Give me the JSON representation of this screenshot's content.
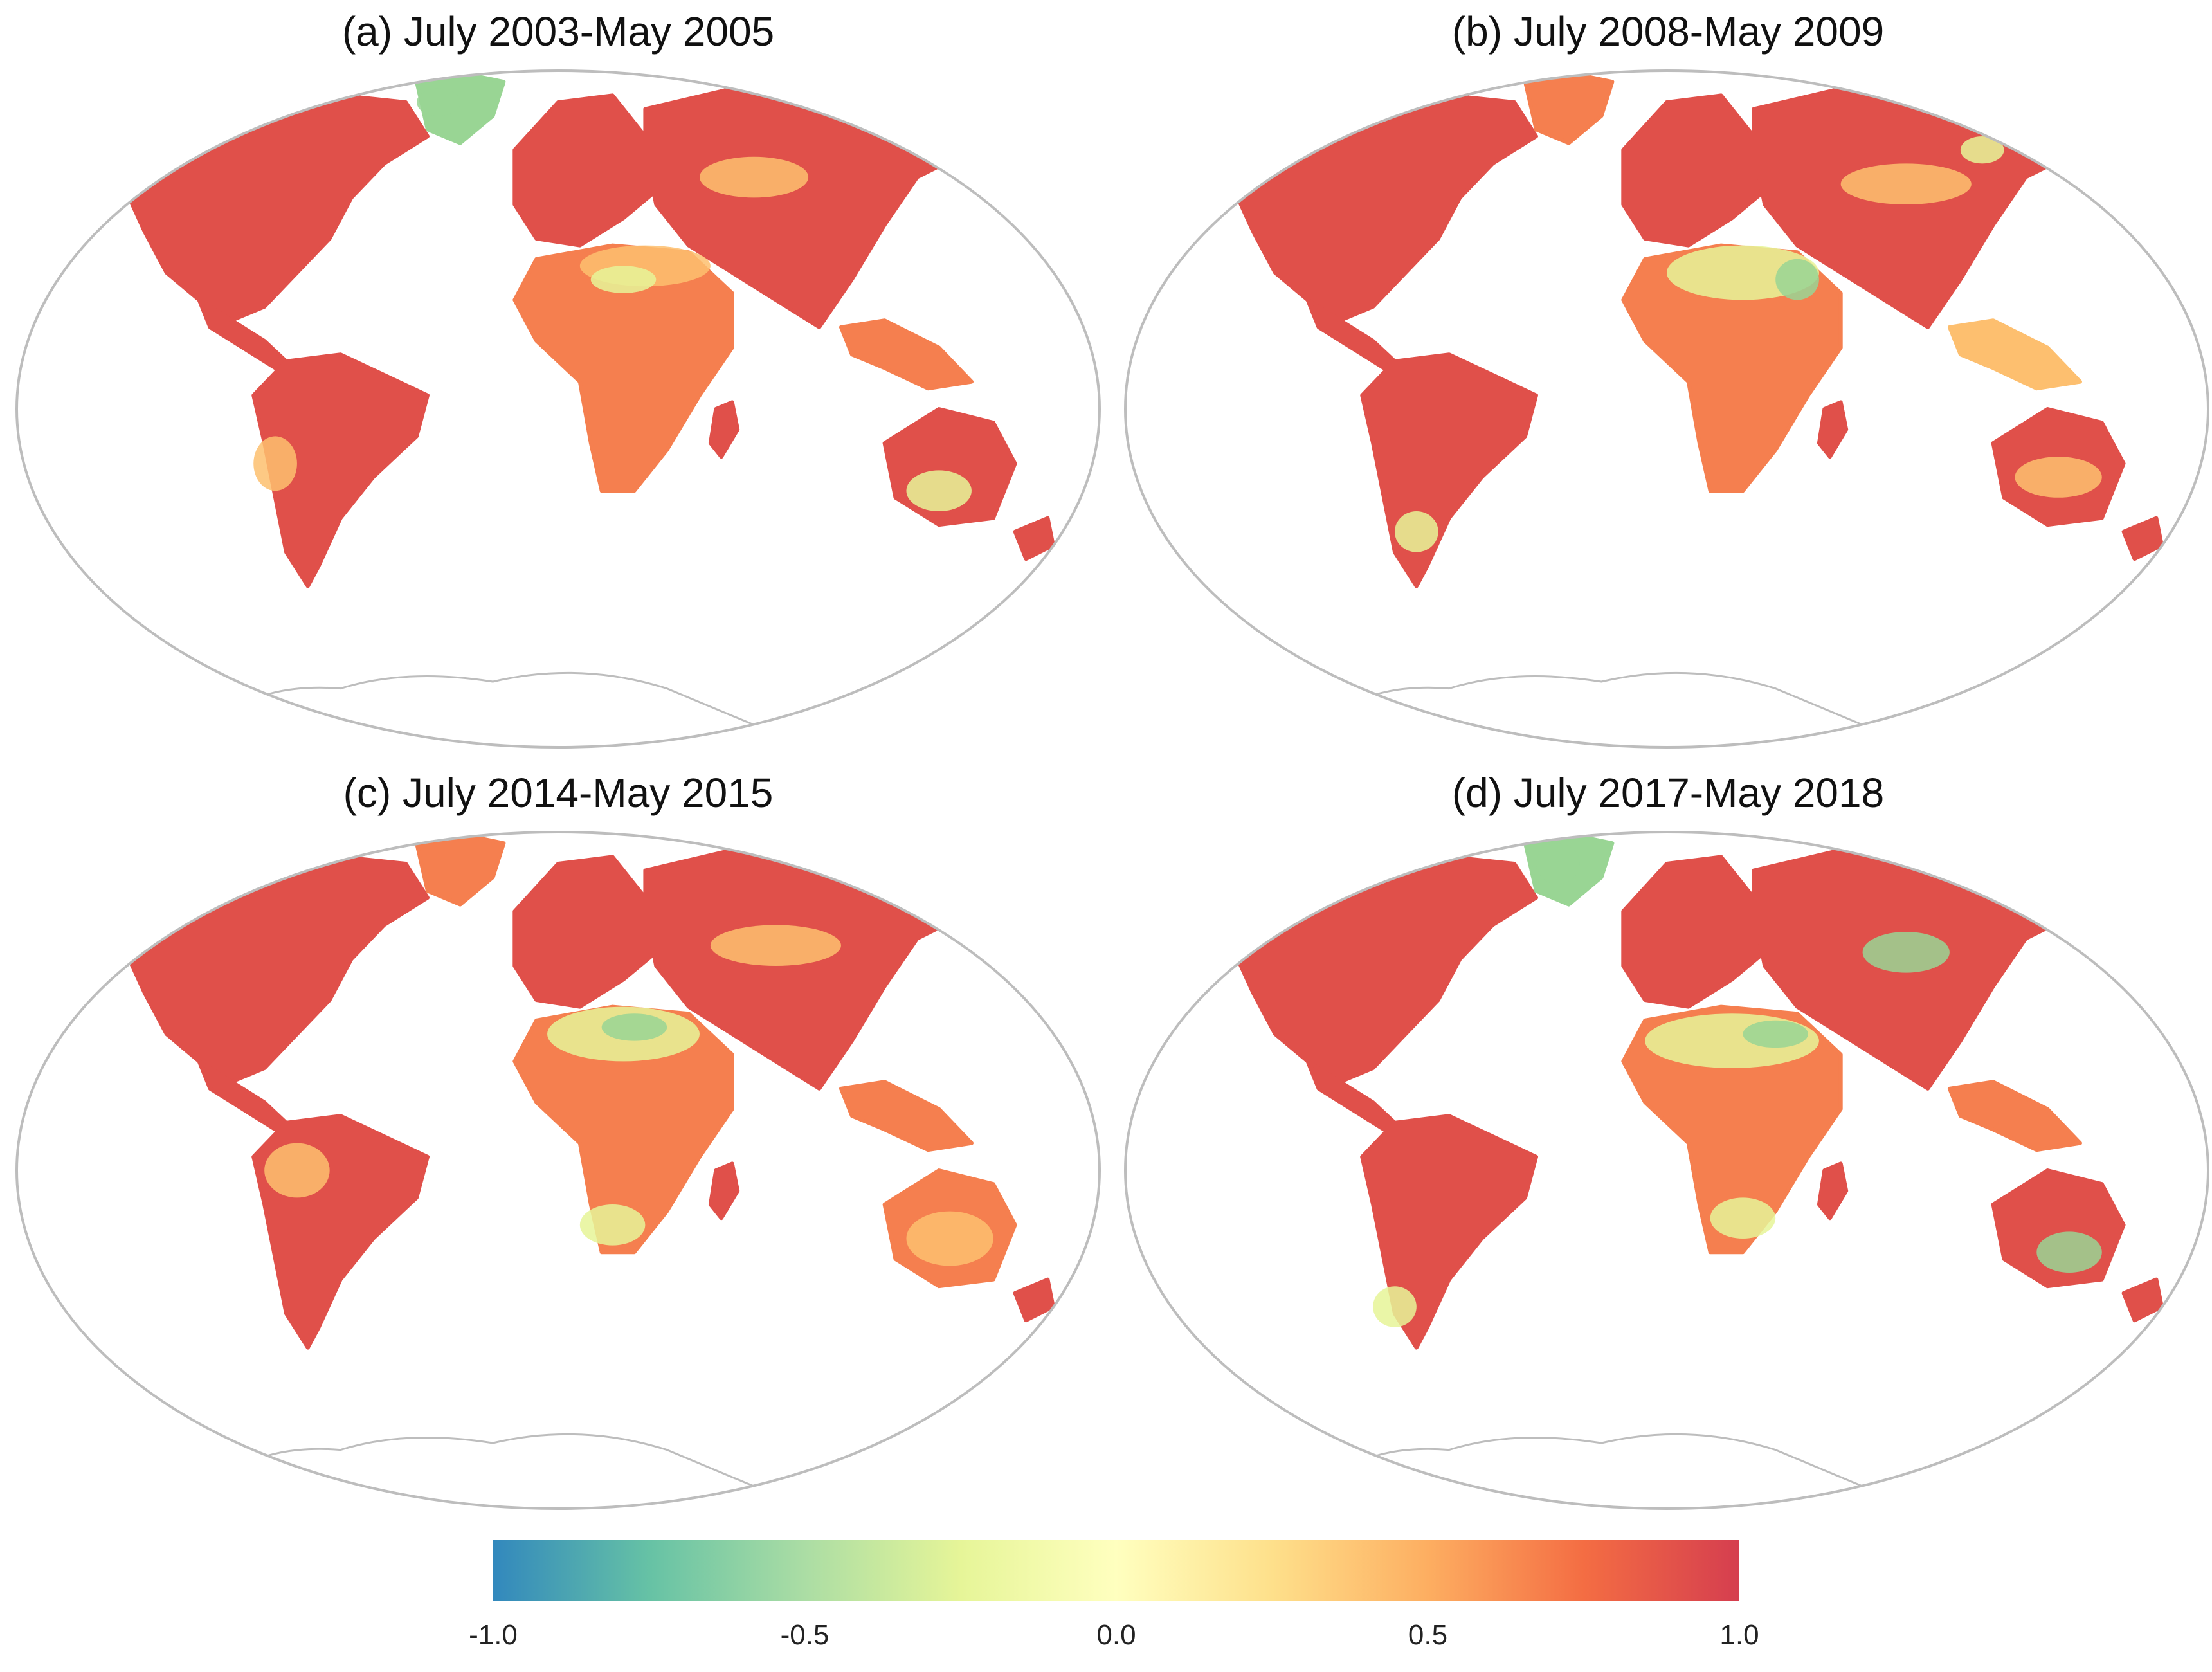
{
  "panels": [
    {
      "label": "(a) July 2003-May 2005"
    },
    {
      "label": "(b) July 2008-May 2009"
    },
    {
      "label": "(c) July 2014-May 2015"
    },
    {
      "label": "(d) July 2017-May 2018"
    }
  ],
  "legend": {
    "ticks": [
      "-1.0",
      "-0.5",
      "0.0",
      "0.5",
      "1.0"
    ],
    "range": [
      -1.0,
      1.0
    ],
    "colors": [
      "#3288bd",
      "#66c2a5",
      "#abdda4",
      "#e6f598",
      "#ffffbf",
      "#fee08b",
      "#fdae61",
      "#f46d43",
      "#d53e4f"
    ]
  },
  "colors": {
    "outline": "#bdbdbd",
    "land_high": "#e0504a",
    "land_mid": "#f57f4f",
    "land_warm": "#fdbf6f",
    "land_low": "#e6f598",
    "land_neg": "#99d594",
    "land_veryneg": "#4aa2b8",
    "antarctica_outline": "#bdbdbd"
  }
}
